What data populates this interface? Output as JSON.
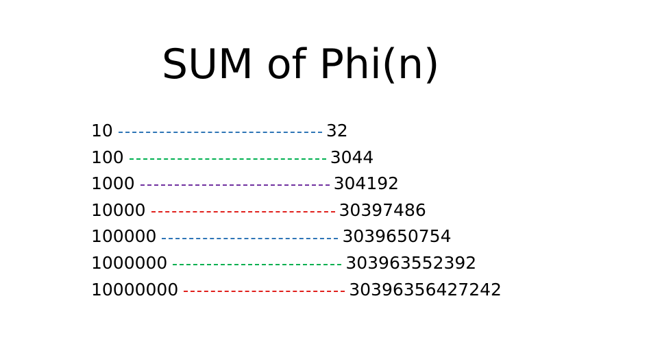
{
  "title": "SUM of Phi(n)",
  "rows": [
    {
      "n": "10",
      "value": "32",
      "dash_color": "#2e75b6"
    },
    {
      "n": "100",
      "value": "3044",
      "dash_color": "#00b050"
    },
    {
      "n": "1000",
      "value": "304192",
      "dash_color": "#7030a0"
    },
    {
      "n": "10000",
      "value": "30397486",
      "dash_color": "#e0201c"
    },
    {
      "n": "100000",
      "value": "3039650754",
      "dash_color": "#2e75b6"
    },
    {
      "n": "1000000",
      "value": "303963552392",
      "dash_color": "#00b050"
    },
    {
      "n": "10000000",
      "value": "30396356427242",
      "dash_color": "#e0201c"
    }
  ]
}
